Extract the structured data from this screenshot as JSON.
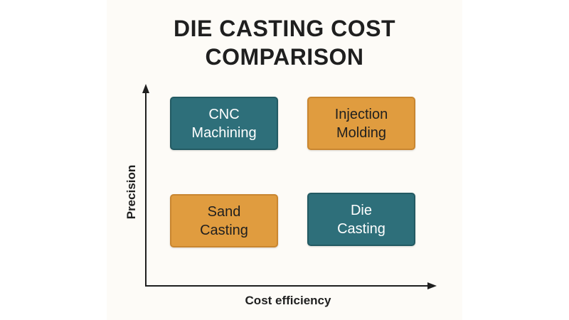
{
  "title": {
    "line1": "DIE CASTING COST",
    "line2": "COMPARISON"
  },
  "axes": {
    "y_label": "Precision",
    "x_label": "Cost efficiency"
  },
  "quadrants": [
    {
      "line1": "CNC",
      "line2": "Machining",
      "color": "#2e6f7a",
      "position": "top-left"
    },
    {
      "line1": "Injection",
      "line2": "Molding",
      "color": "#e09c3f",
      "position": "top-right"
    },
    {
      "line1": "Sand",
      "line2": "Casting",
      "color": "#e09c3f",
      "position": "bottom-left"
    },
    {
      "line1": "Die",
      "line2": "Casting",
      "color": "#2e6f7a",
      "position": "bottom-right"
    }
  ]
}
